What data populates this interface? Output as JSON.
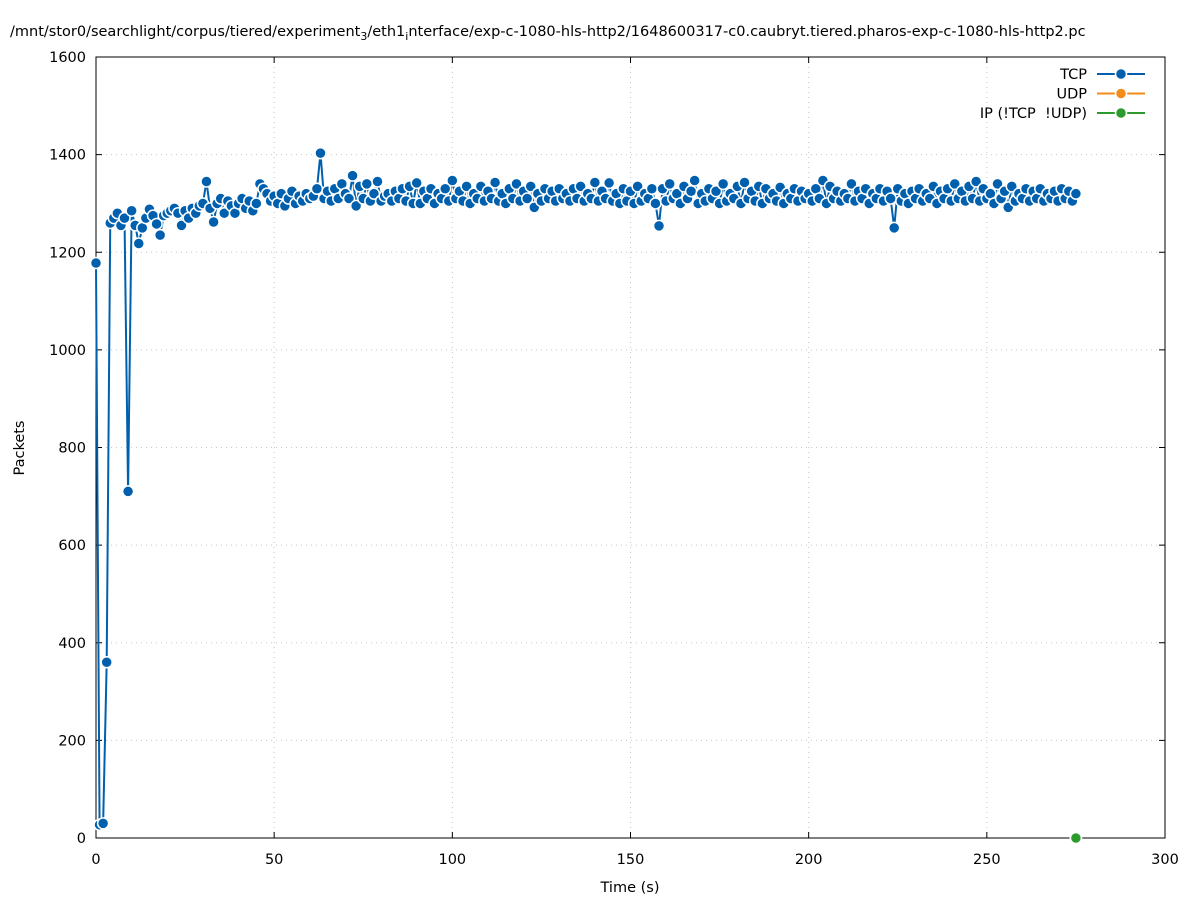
{
  "chart_data": {
    "type": "line",
    "title": [
      "/mnt/stor0/searchlight/corpus/tiered/experiment",
      "3",
      "/eth1",
      "i",
      "nterface/exp-c-1080-hls-http2/1648600317-c0.caubryt.tiered.pharos-exp-c-1080-hls-http2.pc"
    ],
    "xlabel": "Time (s)",
    "ylabel": "Packets",
    "xlim": [
      0,
      300
    ],
    "ylim": [
      0,
      1600
    ],
    "xticks": [
      0,
      50,
      100,
      150,
      200,
      250,
      300
    ],
    "yticks": [
      0,
      200,
      400,
      600,
      800,
      1000,
      1200,
      1400,
      1600
    ],
    "grid": true,
    "legend": "top-right",
    "series": [
      {
        "name": "TCP",
        "color": "#0060ad",
        "x": [
          0,
          1,
          2,
          3,
          4,
          5,
          6,
          7,
          8,
          9,
          10,
          11,
          12,
          13,
          14,
          15,
          16,
          17,
          18,
          19,
          20,
          21,
          22,
          23,
          24,
          25,
          26,
          27,
          28,
          29,
          30,
          31,
          32,
          33,
          34,
          35,
          36,
          37,
          38,
          39,
          40,
          41,
          42,
          43,
          44,
          45,
          46,
          47,
          48,
          49,
          50,
          51,
          52,
          53,
          54,
          55,
          56,
          57,
          58,
          59,
          60,
          61,
          62,
          63,
          64,
          65,
          66,
          67,
          68,
          69,
          70,
          71,
          72,
          73,
          74,
          75,
          76,
          77,
          78,
          79,
          80,
          81,
          82,
          83,
          84,
          85,
          86,
          87,
          88,
          89,
          90,
          91,
          92,
          93,
          94,
          95,
          96,
          97,
          98,
          99,
          100,
          101,
          102,
          103,
          104,
          105,
          106,
          107,
          108,
          109,
          110,
          111,
          112,
          113,
          114,
          115,
          116,
          117,
          118,
          119,
          120,
          121,
          122,
          123,
          124,
          125,
          126,
          127,
          128,
          129,
          130,
          131,
          132,
          133,
          134,
          135,
          136,
          137,
          138,
          139,
          140,
          141,
          142,
          143,
          144,
          145,
          146,
          147,
          148,
          149,
          150,
          151,
          152,
          153,
          154,
          155,
          156,
          157,
          158,
          159,
          160,
          161,
          162,
          163,
          164,
          165,
          166,
          167,
          168,
          169,
          170,
          171,
          172,
          173,
          174,
          175,
          176,
          177,
          178,
          179,
          180,
          181,
          182,
          183,
          184,
          185,
          186,
          187,
          188,
          189,
          190,
          191,
          192,
          193,
          194,
          195,
          196,
          197,
          198,
          199,
          200,
          201,
          202,
          203,
          204,
          205,
          206,
          207,
          208,
          209,
          210,
          211,
          212,
          213,
          214,
          215,
          216,
          217,
          218,
          219,
          220,
          221,
          222,
          223,
          224,
          225,
          226,
          227,
          228,
          229,
          230,
          231,
          232,
          233,
          234,
          235,
          236,
          237,
          238,
          239,
          240,
          241,
          242,
          243,
          244,
          245,
          246,
          247,
          248,
          249,
          250,
          251,
          252,
          253,
          254,
          255,
          256,
          257,
          258,
          259,
          260,
          261,
          262,
          263,
          264,
          265,
          266,
          267,
          268,
          269,
          270,
          271,
          272,
          273,
          274,
          275
        ],
        "values": [
          1178,
          27,
          30,
          360,
          1260,
          1270,
          1280,
          1255,
          1270,
          710,
          1285,
          1255,
          1218,
          1250,
          1270,
          1288,
          1275,
          1258,
          1235,
          1275,
          1280,
          1285,
          1290,
          1280,
          1255,
          1285,
          1270,
          1290,
          1280,
          1295,
          1300,
          1345,
          1290,
          1262,
          1300,
          1310,
          1280,
          1305,
          1295,
          1280,
          1300,
          1310,
          1290,
          1305,
          1285,
          1300,
          1340,
          1330,
          1320,
          1305,
          1315,
          1300,
          1320,
          1295,
          1310,
          1325,
          1300,
          1315,
          1305,
          1320,
          1310,
          1315,
          1330,
          1403,
          1310,
          1325,
          1305,
          1330,
          1310,
          1340,
          1320,
          1310,
          1357,
          1295,
          1335,
          1310,
          1340,
          1305,
          1320,
          1345,
          1305,
          1315,
          1320,
          1305,
          1325,
          1310,
          1330,
          1305,
          1335,
          1300,
          1342,
          1300,
          1325,
          1310,
          1330,
          1300,
          1320,
          1310,
          1330,
          1305,
          1347,
          1310,
          1325,
          1305,
          1335,
          1300,
          1320,
          1310,
          1335,
          1305,
          1325,
          1310,
          1343,
          1305,
          1320,
          1300,
          1330,
          1310,
          1340,
          1305,
          1325,
          1310,
          1335,
          1292,
          1320,
          1305,
          1330,
          1310,
          1325,
          1305,
          1330,
          1310,
          1320,
          1305,
          1330,
          1310,
          1335,
          1305,
          1320,
          1310,
          1343,
          1305,
          1325,
          1310,
          1342,
          1305,
          1320,
          1300,
          1330,
          1305,
          1325,
          1300,
          1335,
          1305,
          1320,
          1310,
          1330,
          1300,
          1254,
          1330,
          1305,
          1340,
          1310,
          1320,
          1300,
          1335,
          1310,
          1325,
          1347,
          1300,
          1320,
          1305,
          1330,
          1310,
          1325,
          1300,
          1340,
          1305,
          1320,
          1310,
          1335,
          1300,
          1343,
          1310,
          1325,
          1305,
          1335,
          1300,
          1330,
          1310,
          1320,
          1305,
          1333,
          1300,
          1320,
          1310,
          1330,
          1305,
          1325,
          1310,
          1320,
          1305,
          1330,
          1310,
          1347,
          1300,
          1335,
          1310,
          1325,
          1305,
          1320,
          1310,
          1340,
          1305,
          1325,
          1310,
          1330,
          1300,
          1320,
          1310,
          1330,
          1305,
          1325,
          1310,
          1250,
          1330,
          1305,
          1320,
          1300,
          1325,
          1310,
          1330,
          1305,
          1320,
          1310,
          1335,
          1300,
          1325,
          1310,
          1330,
          1305,
          1340,
          1310,
          1325,
          1305,
          1335,
          1310,
          1345,
          1305,
          1330,
          1310,
          1320,
          1300,
          1340,
          1310,
          1325,
          1292,
          1335,
          1305,
          1320,
          1310,
          1330,
          1305,
          1325,
          1310,
          1330,
          1305,
          1320,
          1310,
          1325,
          1305,
          1330,
          1310,
          1325,
          1305,
          1320
        ]
      },
      {
        "name": "UDP",
        "color": "#f28c1b",
        "x": [
          275
        ],
        "values": [
          0
        ]
      },
      {
        "name": "IP (!TCP  !UDP)",
        "color": "#2d9a2d",
        "x": [
          275
        ],
        "values": [
          0
        ]
      }
    ]
  }
}
